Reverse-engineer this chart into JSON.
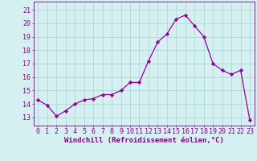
{
  "hours": [
    0,
    1,
    2,
    3,
    4,
    5,
    6,
    7,
    8,
    9,
    10,
    11,
    12,
    13,
    14,
    15,
    16,
    17,
    18,
    19,
    20,
    21,
    22,
    23
  ],
  "values": [
    14.3,
    13.9,
    13.1,
    13.5,
    14.0,
    14.3,
    14.4,
    14.7,
    14.7,
    15.0,
    15.6,
    15.6,
    17.2,
    18.6,
    19.2,
    20.3,
    20.6,
    19.8,
    19.0,
    17.0,
    16.5,
    16.2,
    16.5,
    12.8
  ],
  "line_color": "#990099",
  "marker": "D",
  "marker_size": 2.2,
  "bg_color": "#d4f0f0",
  "grid_color": "#b0d8d8",
  "ylabel_ticks": [
    13,
    14,
    15,
    16,
    17,
    18,
    19,
    20,
    21
  ],
  "ylim": [
    12.4,
    21.6
  ],
  "xlim": [
    -0.5,
    23.5
  ],
  "axis_color": "#880088",
  "tick_color": "#880088",
  "xlabel": "Windchill (Refroidissement éolien,°C)",
  "xlabel_color": "#880088",
  "font_size_ticks": 6.0,
  "font_size_xlabel": 6.5,
  "linewidth": 0.9
}
